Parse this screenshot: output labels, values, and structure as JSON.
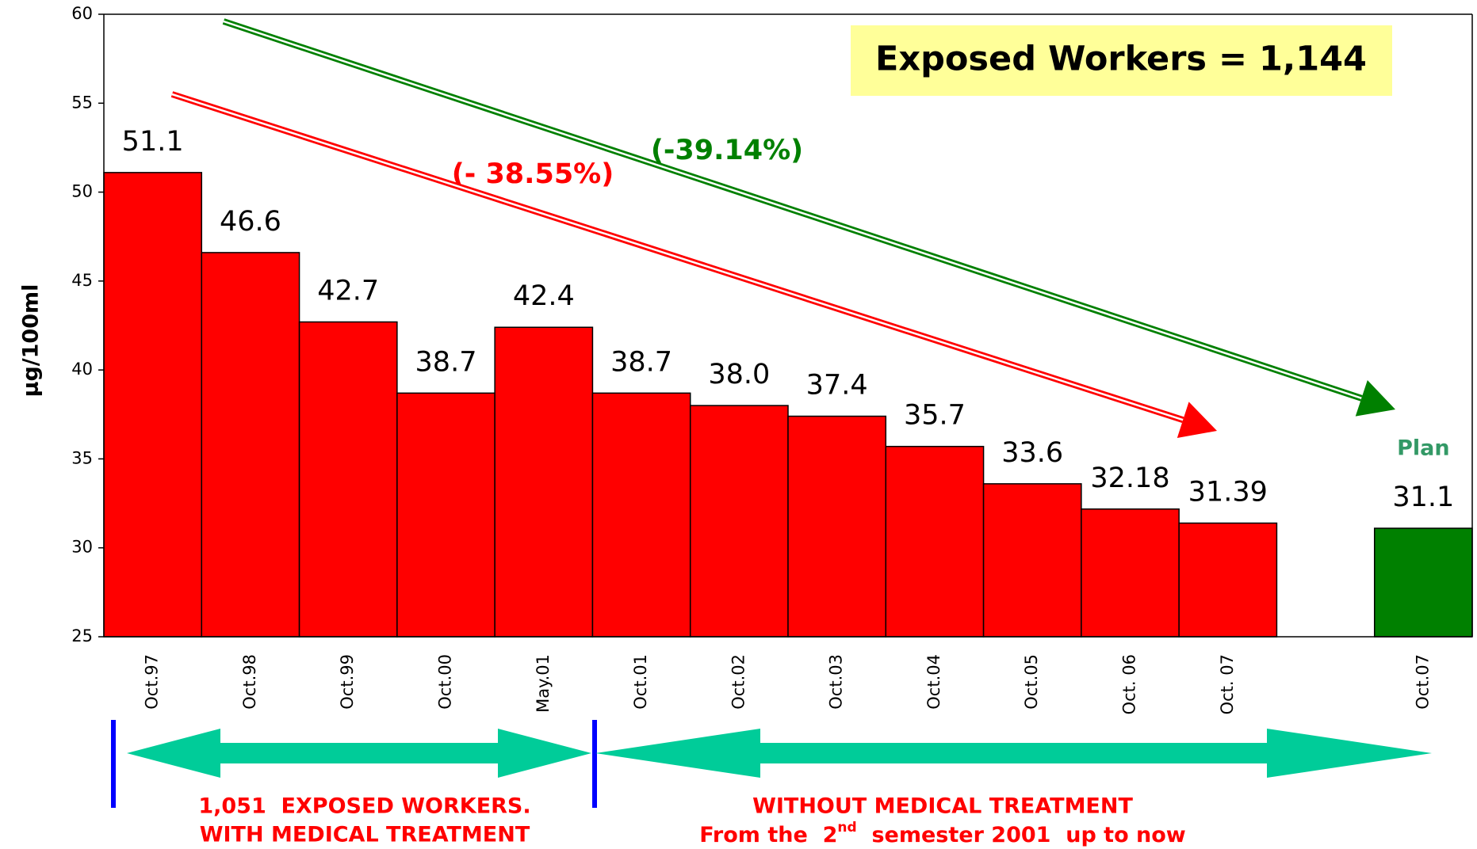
{
  "chart_data": {
    "type": "bar",
    "y_label": "µg/100ml",
    "categories": [
      "Oct.97",
      "Oct.98",
      "Oct.99",
      "Oct.00",
      "May.01",
      "Oct.01",
      "Oct.02",
      "Oct.03",
      "Oct.04",
      "Oct.05",
      "Oct. 06",
      "Oct. 07",
      null,
      "Oct.07"
    ],
    "values": [
      51.1,
      46.6,
      42.7,
      38.7,
      42.4,
      38.7,
      38.0,
      37.4,
      35.7,
      33.6,
      32.18,
      31.39,
      null,
      31.1
    ],
    "value_labels": [
      "51.1",
      "46.6",
      "42.7",
      "38.7",
      "42.4",
      "38.7",
      "38.0",
      "37.4",
      "35.7",
      "33.6",
      "32.18",
      "31.39",
      null,
      "31.1"
    ],
    "colors": [
      "#ff0000",
      "#ff0000",
      "#ff0000",
      "#ff0000",
      "#ff0000",
      "#ff0000",
      "#ff0000",
      "#ff0000",
      "#ff0000",
      "#ff0000",
      "#ff0000",
      "#ff0000",
      null,
      "#008000"
    ],
    "ylim": [
      25,
      60
    ],
    "yticks": [
      25,
      30,
      35,
      40,
      45,
      50,
      55,
      60
    ],
    "plan_label": "Plan",
    "box_text": "Exposed Workers = 1,144",
    "red_trend": "(- 38.55%)",
    "green_trend": "(-39.14%)",
    "left_note": [
      "1,051  EXPOSED WORKERS.",
      "WITH MEDICAL TREATMENT"
    ],
    "right_note": [
      "WITHOUT MEDICAL TREATMENT",
      "From the  2",
      "nd",
      "  semester 2001  up to now"
    ]
  }
}
